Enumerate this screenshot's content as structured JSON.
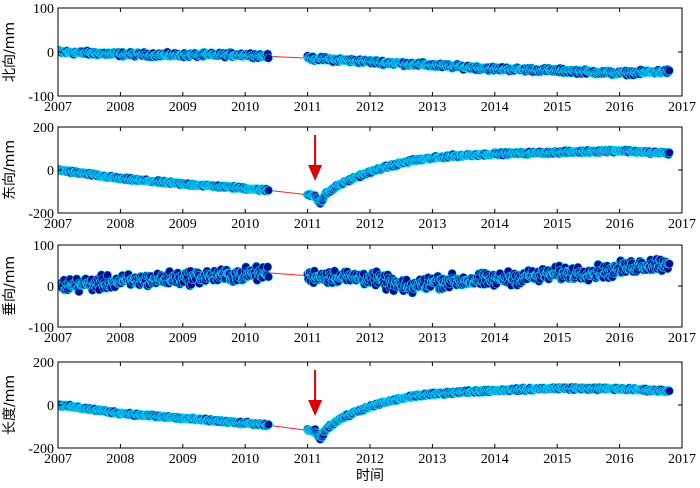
{
  "colors": {
    "marker_fill": "#0a0a8c",
    "marker_edge": "#00e5ff",
    "gap_line": "#ff2020",
    "arrow": "#e00000",
    "axes": "#000000"
  },
  "chart_data": [
    {
      "type": "scatter",
      "ylabel": "北向/mm",
      "xlabel": "",
      "xlim": [
        2007,
        2017
      ],
      "ylim": [
        -100,
        100
      ],
      "x_ticks": [
        "2007",
        "2008",
        "2009",
        "2010",
        "2011",
        "2012",
        "2013",
        "2014",
        "2015",
        "2016",
        "2017"
      ],
      "y_ticks": [
        "100",
        "0",
        "-100"
      ],
      "noise": 4,
      "segments": [
        {
          "x": [
            2007.0,
            2008.0,
            2009.0,
            2010.0,
            2010.38
          ],
          "y": [
            0,
            -5,
            -7,
            -6,
            -10
          ]
        },
        {
          "x": [
            2011.0,
            2012.0,
            2013.0,
            2014.0,
            2015.0,
            2016.0,
            2016.8
          ],
          "y": [
            -14,
            -22,
            -30,
            -38,
            -42,
            -48,
            -44
          ]
        }
      ],
      "gap_line": {
        "x": [
          2010.38,
          2011.0
        ],
        "y": [
          -10,
          -14
        ]
      },
      "arrow_x": null
    },
    {
      "type": "scatter",
      "ylabel": "东向/mm",
      "xlabel": "",
      "xlim": [
        2007,
        2017
      ],
      "ylim": [
        -200,
        200
      ],
      "x_ticks": [
        "2007",
        "2008",
        "2009",
        "2010",
        "2011",
        "2012",
        "2013",
        "2014",
        "2015",
        "2016",
        "2017"
      ],
      "y_ticks": [
        "200",
        "0",
        "-200"
      ],
      "noise": 5,
      "segments": [
        {
          "x": [
            2007.0,
            2008.0,
            2009.0,
            2010.0,
            2010.38
          ],
          "y": [
            0,
            -40,
            -65,
            -85,
            -95
          ]
        },
        {
          "x": [
            2011.0,
            2011.12,
            2011.2,
            2011.3,
            2011.5,
            2011.8,
            2012.2,
            2012.7,
            2013.3,
            2014.0,
            2015.0,
            2016.0,
            2016.8
          ],
          "y": [
            -115,
            -118,
            -155,
            -110,
            -70,
            -30,
            10,
            45,
            65,
            75,
            82,
            90,
            78
          ]
        }
      ],
      "gap_line": {
        "x": [
          2010.38,
          2011.0
        ],
        "y": [
          -95,
          -115
        ]
      },
      "arrow_x": 2011.12
    },
    {
      "type": "scatter",
      "ylabel": "垂向/mm",
      "xlabel": "",
      "xlim": [
        2007,
        2017
      ],
      "ylim": [
        -100,
        100
      ],
      "x_ticks": [
        "2007",
        "2008",
        "2009",
        "2010",
        "2011",
        "2012",
        "2013",
        "2014",
        "2015",
        "2016",
        "2017"
      ],
      "y_ticks": [
        "100",
        "0",
        "-100"
      ],
      "noise": 14,
      "segments": [
        {
          "x": [
            2007.0,
            2008.0,
            2009.0,
            2010.0,
            2010.38
          ],
          "y": [
            0,
            10,
            20,
            28,
            32
          ]
        },
        {
          "x": [
            2011.0,
            2012.0,
            2012.6,
            2013.0,
            2014.0,
            2015.0,
            2015.8,
            2016.3,
            2016.8
          ],
          "y": [
            25,
            20,
            -5,
            10,
            15,
            30,
            35,
            50,
            55
          ]
        }
      ],
      "gap_line": {
        "x": [
          2010.38,
          2011.0
        ],
        "y": [
          32,
          25
        ]
      },
      "arrow_x": null
    },
    {
      "type": "scatter",
      "ylabel": "长度/mm",
      "xlabel": "时间",
      "xlim": [
        2007,
        2017
      ],
      "ylim": [
        -200,
        200
      ],
      "x_ticks": [
        "2007",
        "2008",
        "2009",
        "2010",
        "2011",
        "2012",
        "2013",
        "2014",
        "2015",
        "2016",
        "2017"
      ],
      "y_ticks": [
        "200",
        "0",
        "-200"
      ],
      "noise": 5,
      "segments": [
        {
          "x": [
            2007.0,
            2008.0,
            2009.0,
            2010.0,
            2010.38
          ],
          "y": [
            0,
            -38,
            -62,
            -85,
            -95
          ]
        },
        {
          "x": [
            2011.0,
            2011.12,
            2011.2,
            2011.3,
            2011.5,
            2011.8,
            2012.2,
            2012.7,
            2013.3,
            2014.0,
            2015.0,
            2016.0,
            2016.8
          ],
          "y": [
            -118,
            -120,
            -160,
            -110,
            -68,
            -28,
            10,
            42,
            58,
            68,
            78,
            75,
            65
          ]
        }
      ],
      "gap_line": {
        "x": [
          2010.38,
          2011.0
        ],
        "y": [
          -95,
          -118
        ]
      },
      "arrow_x": 2011.12
    }
  ]
}
